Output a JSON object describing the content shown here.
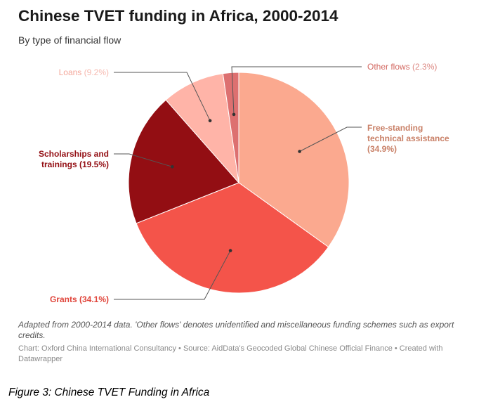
{
  "header": {
    "title": "Chinese TVET funding in Africa, 2000-2014",
    "subtitle": "By type of financial flow"
  },
  "chart_data": {
    "type": "pie",
    "title": "Chinese TVET funding in Africa, 2000-2014",
    "subtitle": "By type of financial flow",
    "slices": [
      {
        "label": "Free-standing technical assistance",
        "value": 34.9,
        "label_lines": [
          "Free-standing",
          "technical assistance",
          "(34.9%)"
        ],
        "color": "#fba98f",
        "label_color": "#c98067"
      },
      {
        "label": "Grants",
        "value": 34.1,
        "label_lines": [
          "Grants (34.1%)"
        ],
        "color": "#f4544a",
        "label_color": "#e0453b"
      },
      {
        "label": "Scholarships and trainings",
        "value": 19.5,
        "label_lines": [
          "Scholarships and",
          "trainings (19.5%)"
        ],
        "color": "#930e13",
        "label_color": "#930e13"
      },
      {
        "label": "Loans",
        "value": 9.2,
        "label_lines": [
          "Loans (9.2%)"
        ],
        "color": "#ffb4a8",
        "label_color": "#f4a79b"
      },
      {
        "label": "Other flows",
        "value": 2.3,
        "label_lines": [
          "Other flows (2.3%)"
        ],
        "color": "#dd7070",
        "label_color": "#d36a63"
      }
    ]
  },
  "footer": {
    "note": "Adapted from 2000-2014 data. 'Other flows' denotes unidentified and miscellaneous funding schemes such as export credits.",
    "credit": "Chart: Oxford China International Consultancy • Source: AidData's Geocoded Global Chinese Official Finance • Created with Datawrapper",
    "figure_caption": "Figure 3: Chinese TVET Funding in Africa"
  }
}
